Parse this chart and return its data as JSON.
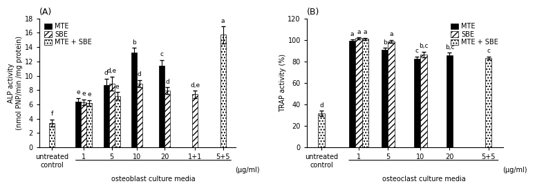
{
  "panel_A": {
    "title": "(A)",
    "ylabel": "ALP activity\n(nmol PNP/min /mg protein)",
    "xlabel": "osteoblast culture media",
    "xlabel_unit": "(μg/ml)",
    "ylim": [
      0,
      18
    ],
    "yticks": [
      0,
      2,
      4,
      6,
      8,
      10,
      12,
      14,
      16,
      18
    ],
    "groups": [
      "untreated\ncontrol",
      "1",
      "5",
      "10",
      "20",
      "1+1",
      "5+5"
    ],
    "MTE": [
      null,
      6.4,
      8.7,
      13.2,
      11.4,
      null,
      null
    ],
    "SBE": [
      null,
      6.3,
      8.9,
      8.9,
      7.9,
      7.4,
      null
    ],
    "MTE_SBE": [
      3.4,
      6.2,
      7.2,
      null,
      null,
      null,
      15.7
    ],
    "MTE_err": [
      null,
      0.5,
      0.9,
      0.7,
      0.8,
      null,
      null
    ],
    "SBE_err": [
      null,
      0.4,
      1.0,
      0.5,
      0.5,
      0.5,
      null
    ],
    "MTE_SBE_err": [
      0.5,
      0.4,
      0.5,
      null,
      null,
      null,
      1.2
    ],
    "letters_MTE": [
      null,
      "e",
      "d",
      "b",
      "c",
      null,
      null
    ],
    "letters_SBE": [
      null,
      "e",
      "d,e",
      "d",
      "d",
      "d,e",
      null
    ],
    "letters_MTE_SBE": [
      "f",
      "e",
      "e",
      null,
      null,
      null,
      "a"
    ]
  },
  "panel_B": {
    "title": "(B)",
    "ylabel": "TRAP activity (%)",
    "xlabel": "osteoclast culture media",
    "xlabel_unit": "(μg/ml)",
    "ylim": [
      0,
      120
    ],
    "yticks": [
      0,
      20,
      40,
      60,
      80,
      100,
      120
    ],
    "groups": [
      "untreated\ncontrol",
      "1",
      "5",
      "10",
      "20",
      "5+5"
    ],
    "MTE": [
      null,
      99.5,
      91.0,
      82.5,
      85.5,
      null
    ],
    "SBE": [
      null,
      101.5,
      98.5,
      86.5,
      null,
      null
    ],
    "MTE_SBE": [
      31.5,
      101.0,
      null,
      null,
      null,
      83.0
    ],
    "MTE_err": [
      null,
      1.0,
      1.5,
      2.0,
      2.5,
      null
    ],
    "SBE_err": [
      null,
      1.0,
      1.5,
      2.5,
      null,
      null
    ],
    "MTE_SBE_err": [
      2.5,
      1.0,
      null,
      null,
      null,
      1.5
    ],
    "letters_MTE": [
      null,
      "a",
      "b",
      "c",
      "b,c",
      null
    ],
    "letters_SBE": [
      null,
      "a",
      "a",
      "b,c",
      null,
      null
    ],
    "letters_MTE_SBE": [
      "d",
      "a",
      null,
      null,
      null,
      "c"
    ]
  },
  "legend_MTE_label": "MTE",
  "legend_SBE_label": "SBE",
  "legend_MTE_SBE_label": "MTE + SBE",
  "hatch_MTE": "",
  "hatch_SBE": "////",
  "hatch_MTE_SBE": "....",
  "bar_width": 0.2,
  "letter_fontsize": 6.5,
  "label_fontsize": 7,
  "tick_fontsize": 7,
  "legend_fontsize": 7,
  "figsize": [
    7.74,
    2.82
  ],
  "dpi": 100
}
